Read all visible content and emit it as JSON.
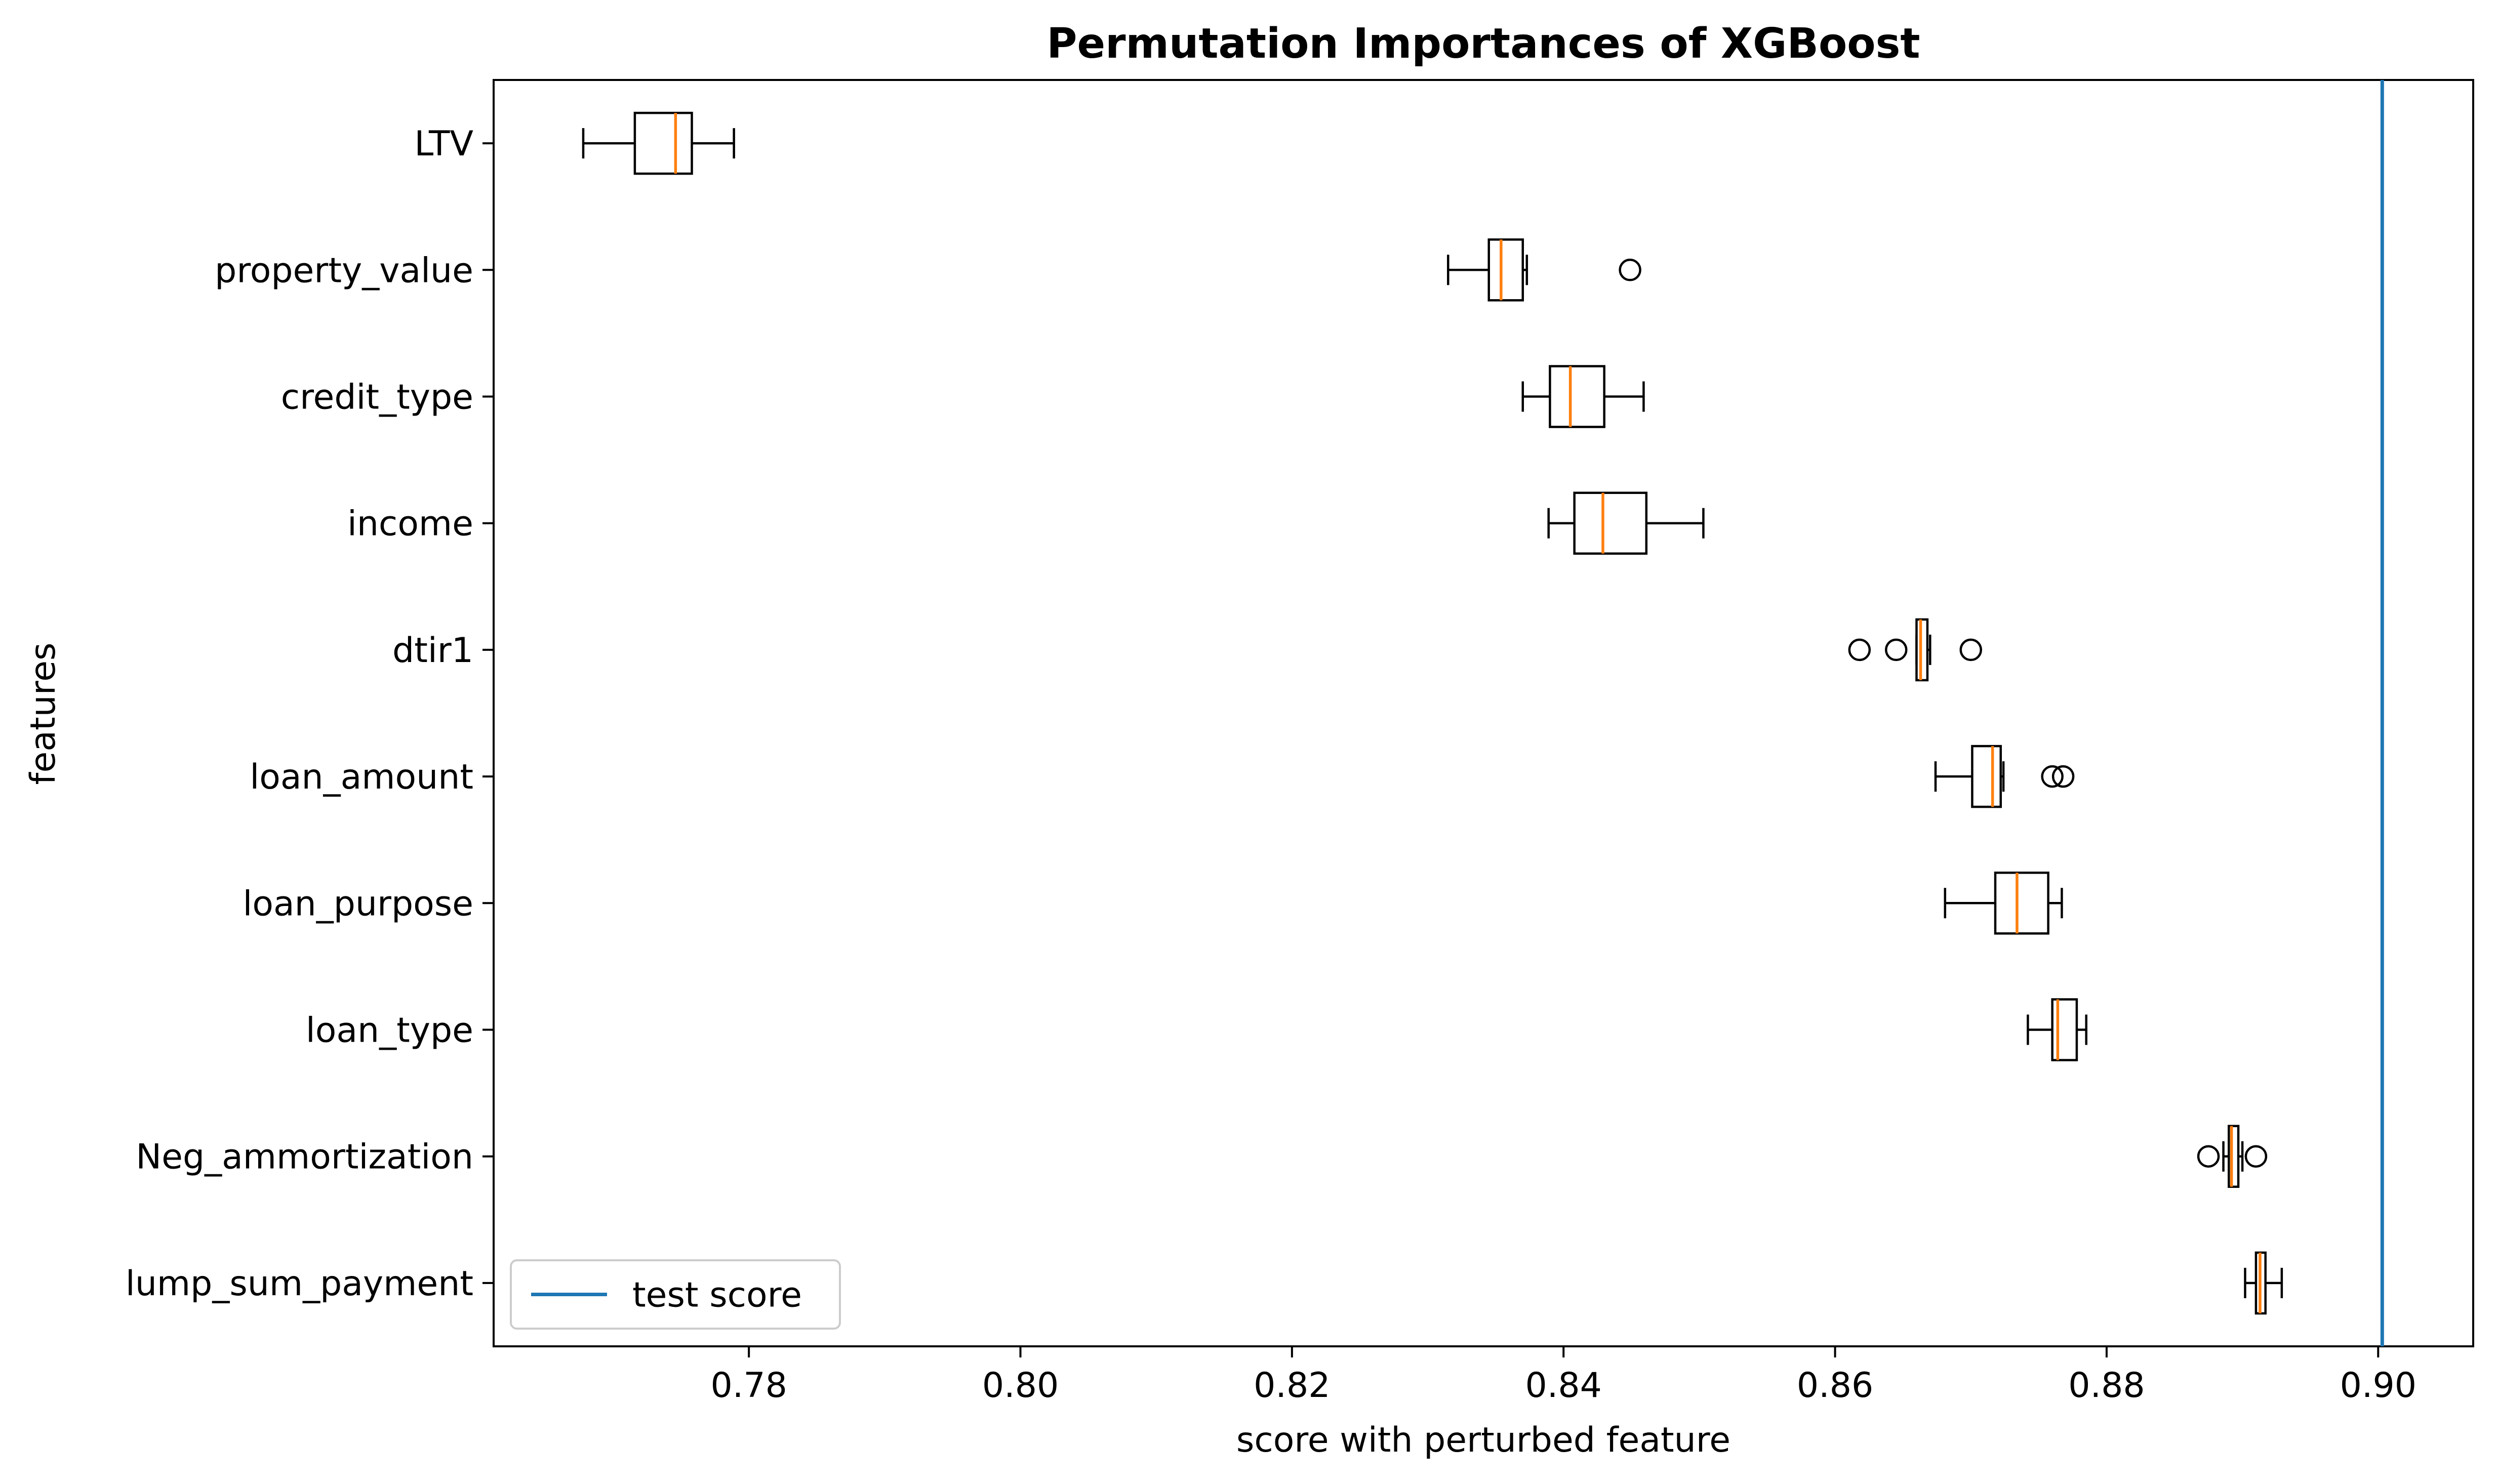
{
  "chart_data": {
    "type": "boxplot",
    "orientation": "horizontal",
    "title": "Permutation Importances of XGBoost",
    "xlabel": "score with perturbed feature",
    "ylabel": "features",
    "xlim": [
      0.7612,
      0.907
    ],
    "xticks": [
      0.78,
      0.8,
      0.82,
      0.84,
      0.86,
      0.88,
      0.9
    ],
    "xtick_labels": [
      "0.78",
      "0.80",
      "0.82",
      "0.84",
      "0.86",
      "0.88",
      "0.90"
    ],
    "grid": false,
    "legend": {
      "placement": "lower-left",
      "entries": [
        {
          "label": "test score",
          "color": "#1f77b4"
        }
      ]
    },
    "reference_line": {
      "name": "test score",
      "x": 0.9003,
      "color": "#1f77b4"
    },
    "colors": {
      "box": "#000000",
      "median": "#ff7f0e"
    },
    "categories": [
      "LTV",
      "property_value",
      "credit_type",
      "income",
      "dtir1",
      "loan_amount",
      "loan_purpose",
      "loan_type",
      "Neg_ammortization",
      "lump_sum_payment"
    ],
    "boxes": [
      {
        "label": "LTV",
        "whislo": 0.7678,
        "q1": 0.7716,
        "med": 0.7746,
        "q3": 0.7758,
        "whishi": 0.7789,
        "fliers": []
      },
      {
        "label": "property_value",
        "whislo": 0.8315,
        "q1": 0.8345,
        "med": 0.8354,
        "q3": 0.837,
        "whishi": 0.8373,
        "fliers": [
          0.8449
        ]
      },
      {
        "label": "credit_type",
        "whislo": 0.837,
        "q1": 0.839,
        "med": 0.8405,
        "q3": 0.843,
        "whishi": 0.8459,
        "fliers": []
      },
      {
        "label": "income",
        "whislo": 0.8389,
        "q1": 0.8408,
        "med": 0.8429,
        "q3": 0.8461,
        "whishi": 0.8503,
        "fliers": []
      },
      {
        "label": "dtir1",
        "whislo": 0.866,
        "q1": 0.866,
        "med": 0.8663,
        "q3": 0.8668,
        "whishi": 0.867,
        "fliers": [
          0.8618,
          0.8645,
          0.87
        ]
      },
      {
        "label": "loan_amount",
        "whislo": 0.8674,
        "q1": 0.8701,
        "med": 0.8716,
        "q3": 0.8722,
        "whishi": 0.8724,
        "fliers": [
          0.876,
          0.8768
        ]
      },
      {
        "label": "loan_purpose",
        "whislo": 0.8681,
        "q1": 0.8718,
        "med": 0.8734,
        "q3": 0.8757,
        "whishi": 0.8767,
        "fliers": []
      },
      {
        "label": "loan_type",
        "whislo": 0.8742,
        "q1": 0.876,
        "med": 0.8764,
        "q3": 0.8778,
        "whishi": 0.8785,
        "fliers": []
      },
      {
        "label": "Neg_ammortization",
        "whislo": 0.8886,
        "q1": 0.889,
        "med": 0.8892,
        "q3": 0.8897,
        "whishi": 0.89,
        "fliers": [
          0.8875,
          0.891
        ]
      },
      {
        "label": "lump_sum_payment",
        "whislo": 0.8902,
        "q1": 0.891,
        "med": 0.8913,
        "q3": 0.8917,
        "whishi": 0.8929,
        "fliers": []
      }
    ]
  }
}
